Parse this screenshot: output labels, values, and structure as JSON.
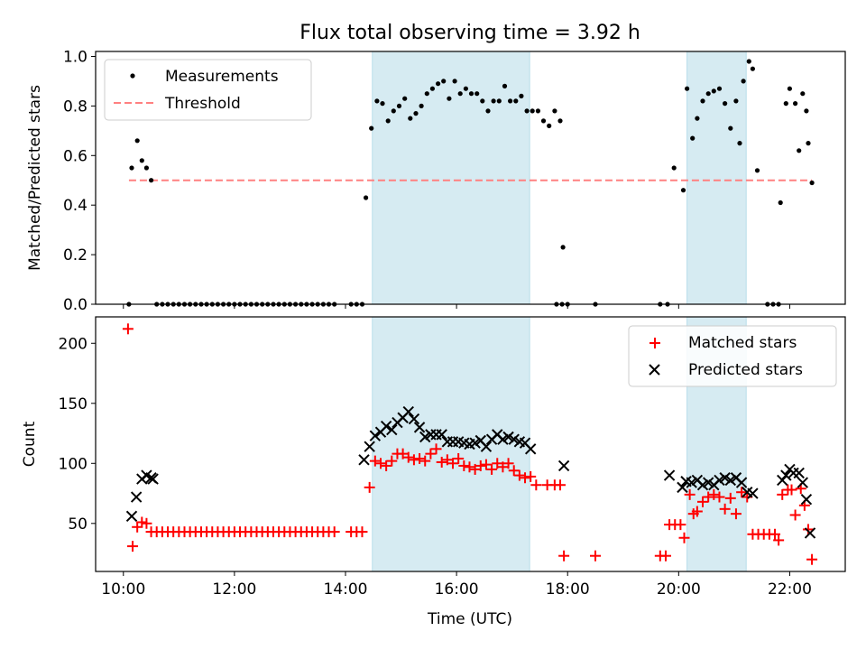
{
  "chart_data": {
    "title": "Flux total observing time = 3.92 h",
    "xlabel": "Time (UTC)",
    "x_ticks": [
      "10:00",
      "12:00",
      "14:00",
      "16:00",
      "18:00",
      "20:00",
      "22:00"
    ],
    "xlim": [
      "09:30",
      "23:00"
    ],
    "shaded_intervals": [
      [
        "14:29",
        "17:19"
      ],
      [
        "20:09",
        "21:13"
      ]
    ],
    "top": {
      "type": "scatter",
      "ylabel": "Matched/Predicted stars",
      "ylim": [
        0,
        1.02
      ],
      "y_ticks": [
        "0.0",
        "0.2",
        "0.4",
        "0.6",
        "0.8",
        "1.0"
      ],
      "legend_position": "top-left",
      "threshold": {
        "name": "Threshold",
        "value": 0.5,
        "x_range": [
          "10:06",
          "22:24"
        ],
        "color": "#ff8080"
      },
      "measurements": {
        "name": "Measurements",
        "color": "#000000",
        "points": [
          [
            "10:06",
            0.0
          ],
          [
            "10:09",
            0.55
          ],
          [
            "10:15",
            0.66
          ],
          [
            "10:20",
            0.58
          ],
          [
            "10:25",
            0.55
          ],
          [
            "10:30",
            0.5
          ],
          [
            "10:36",
            0.0
          ],
          [
            "10:42",
            0.0
          ],
          [
            "10:48",
            0.0
          ],
          [
            "10:54",
            0.0
          ],
          [
            "11:00",
            0.0
          ],
          [
            "11:06",
            0.0
          ],
          [
            "11:12",
            0.0
          ],
          [
            "11:18",
            0.0
          ],
          [
            "11:24",
            0.0
          ],
          [
            "11:30",
            0.0
          ],
          [
            "11:36",
            0.0
          ],
          [
            "11:42",
            0.0
          ],
          [
            "11:48",
            0.0
          ],
          [
            "11:54",
            0.0
          ],
          [
            "12:00",
            0.0
          ],
          [
            "12:06",
            0.0
          ],
          [
            "12:12",
            0.0
          ],
          [
            "12:18",
            0.0
          ],
          [
            "12:24",
            0.0
          ],
          [
            "12:30",
            0.0
          ],
          [
            "12:36",
            0.0
          ],
          [
            "12:42",
            0.0
          ],
          [
            "12:48",
            0.0
          ],
          [
            "12:54",
            0.0
          ],
          [
            "13:00",
            0.0
          ],
          [
            "13:06",
            0.0
          ],
          [
            "13:12",
            0.0
          ],
          [
            "13:18",
            0.0
          ],
          [
            "13:24",
            0.0
          ],
          [
            "13:30",
            0.0
          ],
          [
            "13:36",
            0.0
          ],
          [
            "13:42",
            0.0
          ],
          [
            "13:48",
            0.0
          ],
          [
            "14:06",
            0.0
          ],
          [
            "14:12",
            0.0
          ],
          [
            "14:18",
            0.0
          ],
          [
            "14:22",
            0.43
          ],
          [
            "14:28",
            0.71
          ],
          [
            "14:34",
            0.82
          ],
          [
            "14:40",
            0.81
          ],
          [
            "14:46",
            0.74
          ],
          [
            "14:52",
            0.78
          ],
          [
            "14:58",
            0.8
          ],
          [
            "15:04",
            0.83
          ],
          [
            "15:10",
            0.75
          ],
          [
            "15:16",
            0.77
          ],
          [
            "15:22",
            0.8
          ],
          [
            "15:28",
            0.85
          ],
          [
            "15:34",
            0.87
          ],
          [
            "15:40",
            0.89
          ],
          [
            "15:46",
            0.9
          ],
          [
            "15:52",
            0.83
          ],
          [
            "15:58",
            0.9
          ],
          [
            "16:04",
            0.85
          ],
          [
            "16:10",
            0.87
          ],
          [
            "16:16",
            0.85
          ],
          [
            "16:22",
            0.85
          ],
          [
            "16:28",
            0.82
          ],
          [
            "16:34",
            0.78
          ],
          [
            "16:40",
            0.82
          ],
          [
            "16:46",
            0.82
          ],
          [
            "16:52",
            0.88
          ],
          [
            "16:58",
            0.82
          ],
          [
            "17:04",
            0.82
          ],
          [
            "17:10",
            0.84
          ],
          [
            "17:16",
            0.78
          ],
          [
            "17:22",
            0.78
          ],
          [
            "17:28",
            0.78
          ],
          [
            "17:34",
            0.74
          ],
          [
            "17:40",
            0.72
          ],
          [
            "17:46",
            0.78
          ],
          [
            "17:52",
            0.74
          ],
          [
            "17:48",
            0.0
          ],
          [
            "17:54",
            0.0
          ],
          [
            "18:00",
            0.0
          ],
          [
            "17:55",
            0.23
          ],
          [
            "18:30",
            0.0
          ],
          [
            "19:40",
            0.0
          ],
          [
            "19:48",
            0.0
          ],
          [
            "19:55",
            0.55
          ],
          [
            "20:05",
            0.46
          ],
          [
            "20:09",
            0.87
          ],
          [
            "20:15",
            0.67
          ],
          [
            "20:20",
            0.75
          ],
          [
            "20:26",
            0.82
          ],
          [
            "20:32",
            0.85
          ],
          [
            "20:38",
            0.86
          ],
          [
            "20:44",
            0.87
          ],
          [
            "20:50",
            0.81
          ],
          [
            "20:56",
            0.71
          ],
          [
            "21:02",
            0.82
          ],
          [
            "21:06",
            0.65
          ],
          [
            "21:10",
            0.9
          ],
          [
            "21:16",
            0.98
          ],
          [
            "21:20",
            0.95
          ],
          [
            "21:25",
            0.54
          ],
          [
            "21:36",
            0.0
          ],
          [
            "21:42",
            0.0
          ],
          [
            "21:48",
            0.0
          ],
          [
            "21:50",
            0.41
          ],
          [
            "21:56",
            0.81
          ],
          [
            "22:00",
            0.87
          ],
          [
            "22:06",
            0.81
          ],
          [
            "22:10",
            0.62
          ],
          [
            "22:14",
            0.85
          ],
          [
            "22:18",
            0.78
          ],
          [
            "22:20",
            0.65
          ],
          [
            "22:24",
            0.49
          ]
        ]
      }
    },
    "bottom": {
      "type": "scatter",
      "ylabel": "Count",
      "ylim": [
        10,
        222
      ],
      "y_ticks": [
        "50",
        "100",
        "150",
        "200"
      ],
      "legend_position": "top-right",
      "matched": {
        "name": "Matched stars",
        "color": "#ff0000",
        "marker": "+",
        "points": [
          [
            "10:05",
            212
          ],
          [
            "10:10",
            31
          ],
          [
            "10:15",
            47
          ],
          [
            "10:20",
            51
          ],
          [
            "10:25",
            50
          ],
          [
            "10:30",
            43
          ],
          [
            "10:36",
            43
          ],
          [
            "10:42",
            43
          ],
          [
            "10:48",
            43
          ],
          [
            "10:54",
            43
          ],
          [
            "11:00",
            43
          ],
          [
            "11:06",
            43
          ],
          [
            "11:12",
            43
          ],
          [
            "11:18",
            43
          ],
          [
            "11:24",
            43
          ],
          [
            "11:30",
            43
          ],
          [
            "11:36",
            43
          ],
          [
            "11:42",
            43
          ],
          [
            "11:48",
            43
          ],
          [
            "11:54",
            43
          ],
          [
            "12:00",
            43
          ],
          [
            "12:06",
            43
          ],
          [
            "12:12",
            43
          ],
          [
            "12:18",
            43
          ],
          [
            "12:24",
            43
          ],
          [
            "12:30",
            43
          ],
          [
            "12:36",
            43
          ],
          [
            "12:42",
            43
          ],
          [
            "12:48",
            43
          ],
          [
            "12:54",
            43
          ],
          [
            "13:00",
            43
          ],
          [
            "13:06",
            43
          ],
          [
            "13:12",
            43
          ],
          [
            "13:18",
            43
          ],
          [
            "13:24",
            43
          ],
          [
            "13:30",
            43
          ],
          [
            "13:36",
            43
          ],
          [
            "13:42",
            43
          ],
          [
            "13:48",
            43
          ],
          [
            "14:06",
            43
          ],
          [
            "14:12",
            43
          ],
          [
            "14:18",
            43
          ],
          [
            "14:26",
            80
          ],
          [
            "14:32",
            102
          ],
          [
            "14:38",
            100
          ],
          [
            "14:44",
            98
          ],
          [
            "14:50",
            102
          ],
          [
            "14:56",
            108
          ],
          [
            "15:02",
            108
          ],
          [
            "15:08",
            105
          ],
          [
            "15:14",
            103
          ],
          [
            "15:20",
            104
          ],
          [
            "15:26",
            102
          ],
          [
            "15:32",
            108
          ],
          [
            "15:38",
            112
          ],
          [
            "15:44",
            101
          ],
          [
            "15:50",
            103
          ],
          [
            "15:56",
            100
          ],
          [
            "16:02",
            104
          ],
          [
            "16:08",
            98
          ],
          [
            "16:14",
            97
          ],
          [
            "16:20",
            95
          ],
          [
            "16:26",
            98
          ],
          [
            "16:32",
            99
          ],
          [
            "16:38",
            95
          ],
          [
            "16:44",
            100
          ],
          [
            "16:50",
            97
          ],
          [
            "16:56",
            100
          ],
          [
            "17:02",
            94
          ],
          [
            "17:08",
            90
          ],
          [
            "17:14",
            88
          ],
          [
            "17:20",
            89
          ],
          [
            "17:26",
            82
          ],
          [
            "17:38",
            82
          ],
          [
            "17:46",
            82
          ],
          [
            "17:52",
            82
          ],
          [
            "17:56",
            23
          ],
          [
            "18:30",
            23
          ],
          [
            "19:40",
            23
          ],
          [
            "19:46",
            23
          ],
          [
            "19:50",
            49
          ],
          [
            "19:56",
            49
          ],
          [
            "20:02",
            49
          ],
          [
            "20:06",
            38
          ],
          [
            "20:12",
            74
          ],
          [
            "20:16",
            58
          ],
          [
            "20:20",
            60
          ],
          [
            "20:26",
            68
          ],
          [
            "20:32",
            72
          ],
          [
            "20:38",
            74
          ],
          [
            "20:44",
            72
          ],
          [
            "20:50",
            62
          ],
          [
            "20:56",
            71
          ],
          [
            "21:02",
            58
          ],
          [
            "21:08",
            76
          ],
          [
            "21:14",
            72
          ],
          [
            "21:20",
            41
          ],
          [
            "21:26",
            41
          ],
          [
            "21:32",
            41
          ],
          [
            "21:38",
            41
          ],
          [
            "21:44",
            41
          ],
          [
            "21:48",
            36
          ],
          [
            "21:52",
            74
          ],
          [
            "21:58",
            78
          ],
          [
            "22:02",
            78
          ],
          [
            "22:06",
            57
          ],
          [
            "22:12",
            79
          ],
          [
            "22:16",
            65
          ],
          [
            "22:20",
            45
          ],
          [
            "22:24",
            20
          ]
        ]
      },
      "predicted": {
        "name": "Predicted stars",
        "color": "#000000",
        "marker": "x",
        "points": [
          [
            "10:09",
            56
          ],
          [
            "10:14",
            72
          ],
          [
            "10:20",
            87
          ],
          [
            "10:25",
            90
          ],
          [
            "10:30",
            88
          ],
          [
            "10:32",
            87
          ],
          [
            "14:20",
            103
          ],
          [
            "14:26",
            114
          ],
          [
            "14:32",
            123
          ],
          [
            "14:38",
            126
          ],
          [
            "14:44",
            131
          ],
          [
            "14:50",
            128
          ],
          [
            "14:56",
            134
          ],
          [
            "15:02",
            138
          ],
          [
            "15:08",
            143
          ],
          [
            "15:14",
            137
          ],
          [
            "15:20",
            130
          ],
          [
            "15:26",
            122
          ],
          [
            "15:32",
            124
          ],
          [
            "15:38",
            124
          ],
          [
            "15:44",
            124
          ],
          [
            "15:50",
            118
          ],
          [
            "15:56",
            118
          ],
          [
            "16:02",
            118
          ],
          [
            "16:08",
            117
          ],
          [
            "16:14",
            116
          ],
          [
            "16:20",
            117
          ],
          [
            "16:26",
            119
          ],
          [
            "16:32",
            114
          ],
          [
            "16:38",
            120
          ],
          [
            "16:44",
            124
          ],
          [
            "16:50",
            120
          ],
          [
            "16:56",
            122
          ],
          [
            "17:02",
            120
          ],
          [
            "17:08",
            118
          ],
          [
            "17:14",
            117
          ],
          [
            "17:20",
            112
          ],
          [
            "17:56",
            98
          ],
          [
            "19:50",
            90
          ],
          [
            "20:04",
            80
          ],
          [
            "20:08",
            85
          ],
          [
            "20:14",
            84
          ],
          [
            "20:20",
            86
          ],
          [
            "20:26",
            82
          ],
          [
            "20:32",
            84
          ],
          [
            "20:38",
            82
          ],
          [
            "20:44",
            86
          ],
          [
            "20:50",
            88
          ],
          [
            "20:56",
            86
          ],
          [
            "21:02",
            88
          ],
          [
            "21:08",
            84
          ],
          [
            "21:14",
            76
          ],
          [
            "21:20",
            75
          ],
          [
            "21:52",
            86
          ],
          [
            "21:56",
            90
          ],
          [
            "22:00",
            95
          ],
          [
            "22:04",
            92
          ],
          [
            "22:10",
            92
          ],
          [
            "22:14",
            84
          ],
          [
            "22:18",
            70
          ],
          [
            "22:22",
            42
          ]
        ]
      }
    }
  }
}
